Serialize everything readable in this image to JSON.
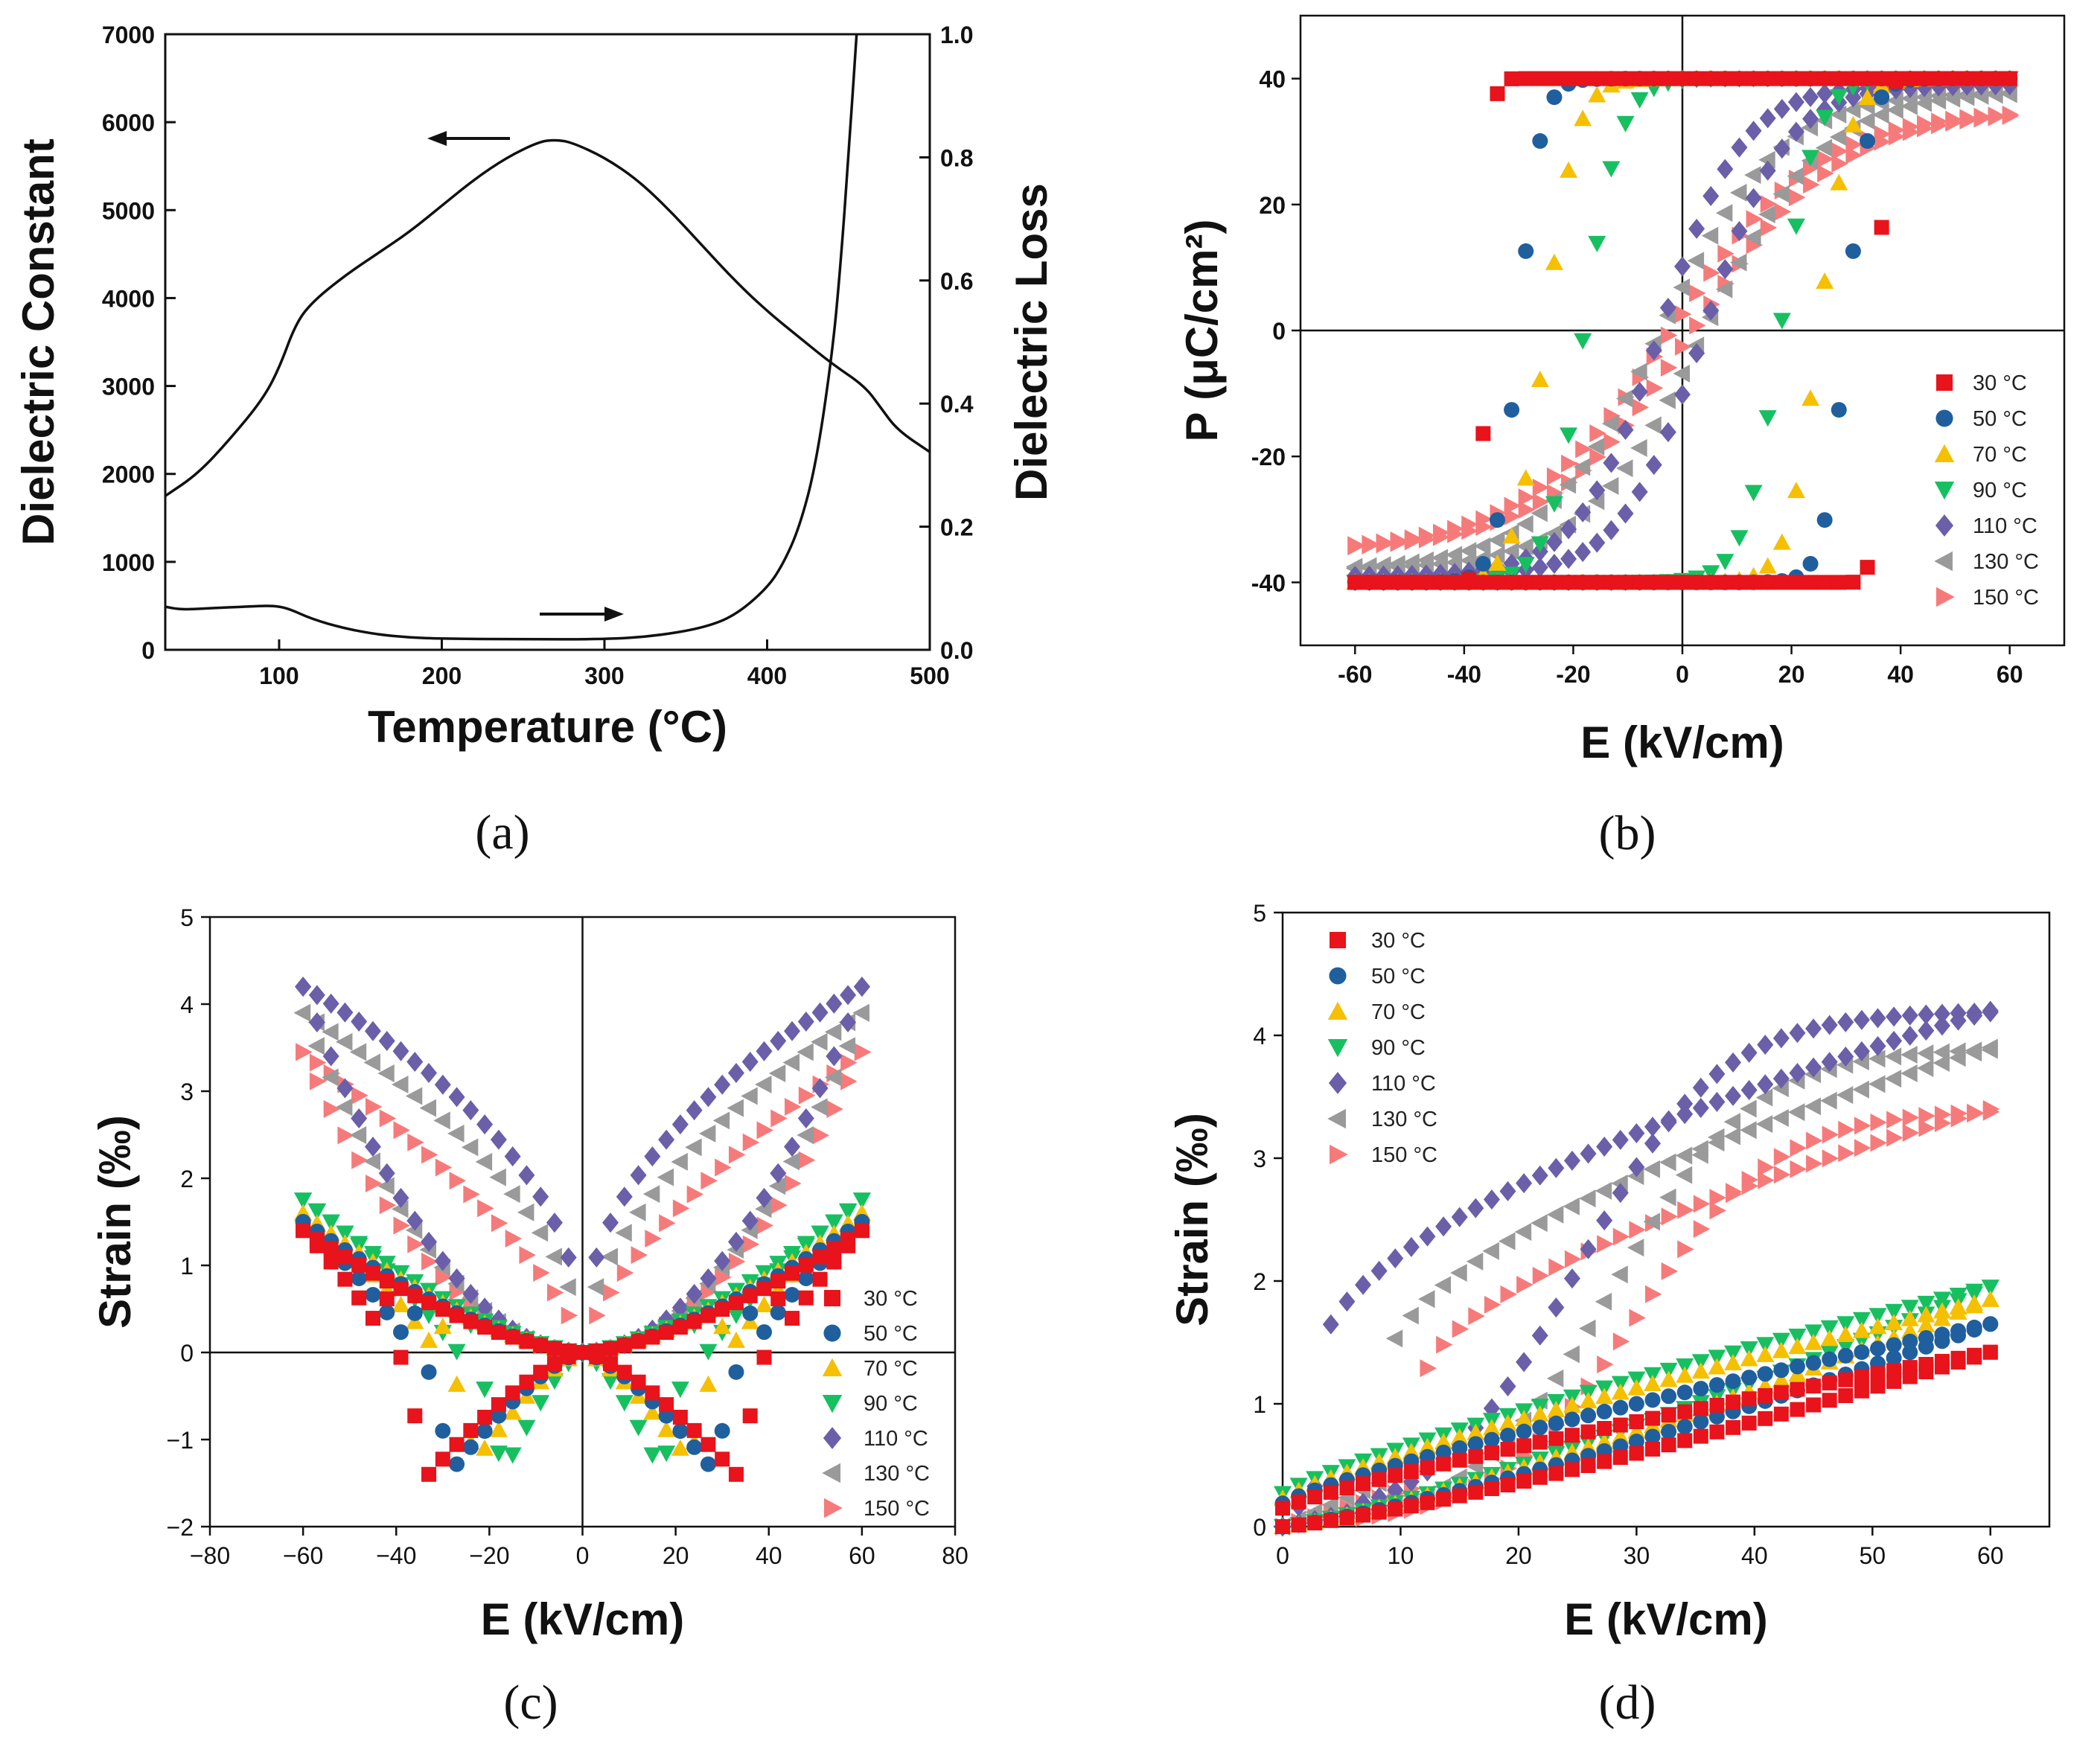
{
  "figure": {
    "panels": [
      "(a)",
      "(b)",
      "(c)",
      "(d)"
    ]
  },
  "series_names": [
    "30 °C",
    "50 °C",
    "70 °C",
    "90 °C",
    "110 °C",
    "130 °C",
    "150 °C"
  ],
  "series_colors": [
    "#e8131b",
    "#1f5f9e",
    "#f5c000",
    "#16c060",
    "#6a5fa8",
    "#9a9a9a",
    "#f77a7a"
  ],
  "series_markers": [
    "square",
    "circle",
    "triangle-up",
    "triangle-down",
    "diamond",
    "triangle-left",
    "triangle-right"
  ],
  "chart_data": [
    {
      "id": "a",
      "type": "line",
      "panel_label": "(a)",
      "xlabel": "Temperature (°C)",
      "ylabel": "Dielectric  Constant",
      "y2label": "Dielectric  Loss",
      "xlim": [
        30,
        500
      ],
      "ylim": [
        0,
        7000
      ],
      "y2lim": [
        0,
        1.0
      ],
      "xticks": [
        100,
        200,
        300,
        400,
        500
      ],
      "yticks": [
        0,
        1000,
        2000,
        3000,
        4000,
        5000,
        6000,
        7000
      ],
      "y2ticks": [
        "0.0",
        "0.2",
        "0.4",
        "0.6",
        "0.8",
        "1.0"
      ],
      "series": [
        {
          "name": "Dielectric Constant",
          "axis": "left",
          "x": [
            30,
            50,
            70,
            90,
            100,
            110,
            120,
            140,
            160,
            180,
            200,
            220,
            240,
            260,
            270,
            280,
            300,
            320,
            340,
            360,
            380,
            400,
            420,
            440,
            460,
            470,
            480,
            500
          ],
          "y": [
            1750,
            2000,
            2400,
            2850,
            3200,
            3700,
            3950,
            4250,
            4500,
            4750,
            5050,
            5350,
            5600,
            5780,
            5800,
            5770,
            5600,
            5350,
            5000,
            4600,
            4200,
            3850,
            3550,
            3250,
            3000,
            2750,
            2500,
            2250
          ]
        },
        {
          "name": "Dielectric Loss",
          "axis": "right",
          "x": [
            30,
            40,
            60,
            80,
            95,
            105,
            120,
            140,
            160,
            180,
            200,
            250,
            300,
            330,
            360,
            380,
            400,
            410,
            420,
            430,
            440,
            445,
            450,
            455
          ],
          "y": [
            0.07,
            0.065,
            0.068,
            0.07,
            0.072,
            0.068,
            0.05,
            0.035,
            0.025,
            0.02,
            0.018,
            0.017,
            0.017,
            0.022,
            0.035,
            0.055,
            0.1,
            0.14,
            0.2,
            0.3,
            0.48,
            0.62,
            0.8,
            1.0
          ]
        }
      ],
      "annotations": [
        "arrow-left-to-constant",
        "arrow-right-to-loss"
      ]
    },
    {
      "id": "b",
      "type": "scatter",
      "panel_label": "(b)",
      "xlabel": "E (kV/cm)",
      "ylabel": "P (μC/cm²)",
      "xlim": [
        -70,
        70
      ],
      "ylim": [
        -50,
        50
      ],
      "xticks": [
        -60,
        -40,
        -20,
        0,
        20,
        40,
        60
      ],
      "yticks": [
        -40,
        -20,
        0,
        20,
        40
      ],
      "legend": "bottom-right",
      "loop": "P-E hysteresis",
      "series": [
        {
          "name": "30 °C",
          "Ps": 40,
          "Ec": 36,
          "width": 1.2
        },
        {
          "name": "50 °C",
          "Ps": 40,
          "Ec": 30,
          "width": 4.0
        },
        {
          "name": "70 °C",
          "Ps": 40,
          "Ec": 25,
          "width": 5.5
        },
        {
          "name": "90 °C",
          "Ps": 40,
          "Ec": 18,
          "width": 6.5
        },
        {
          "name": "110 °C",
          "Ps": 39,
          "Ec": 4,
          "width": 15
        },
        {
          "name": "130 °C",
          "Ps": 38,
          "Ec": 4,
          "width": 22
        },
        {
          "name": "150 °C",
          "Ps": 35,
          "Ec": 2,
          "width": 27
        }
      ]
    },
    {
      "id": "c",
      "type": "scatter",
      "panel_label": "(c)",
      "xlabel": "E (kV/cm)",
      "ylabel": "Strain (‰)",
      "xlim": [
        -80,
        80
      ],
      "ylim": [
        -2,
        5
      ],
      "xticks": [
        -80,
        -60,
        -40,
        -20,
        0,
        20,
        40,
        60,
        80
      ],
      "yticks": [
        -2,
        -1,
        0,
        1,
        2,
        3,
        4,
        5
      ],
      "legend": "bottom-right",
      "loop": "bipolar S-E butterfly",
      "series": [
        {
          "name": "30 °C",
          "Smax": 1.4,
          "Smin": -1.4,
          "Ec": 33
        },
        {
          "name": "50 °C",
          "Smax": 1.5,
          "Smin": -1.35,
          "Ec": 28
        },
        {
          "name": "70 °C",
          "Smax": 1.6,
          "Smin": -1.25,
          "Ec": 23
        },
        {
          "name": "90 °C",
          "Smax": 1.75,
          "Smin": -1.4,
          "Ec": 17
        },
        {
          "name": "110 °C",
          "Smax": 4.2,
          "Smin": 0,
          "Ec": 0
        },
        {
          "name": "130 °C",
          "Smax": 3.9,
          "Smin": 0,
          "Ec": 0
        },
        {
          "name": "150 °C",
          "Smax": 3.45,
          "Smin": 0,
          "Ec": 0
        }
      ]
    },
    {
      "id": "d",
      "type": "scatter",
      "panel_label": "(d)",
      "xlabel": "E (kV/cm)",
      "ylabel": "Strain (‰)",
      "xlim": [
        0,
        65
      ],
      "ylim": [
        0,
        5
      ],
      "xticks": [
        0,
        10,
        20,
        30,
        40,
        50,
        60
      ],
      "yticks": [
        0,
        1,
        2,
        3,
        4,
        5
      ],
      "legend": "top-left",
      "loop": "unipolar S-E",
      "series": [
        {
          "name": "30 °C",
          "Smax": 1.42
        },
        {
          "name": "50 °C",
          "Smax": 1.65
        },
        {
          "name": "70 °C",
          "Smax": 1.85
        },
        {
          "name": "90 °C",
          "Smax": 1.95
        },
        {
          "name": "110 °C",
          "Smax": 4.2
        },
        {
          "name": "130 °C",
          "Smax": 3.9
        },
        {
          "name": "150 °C",
          "Smax": 3.4
        }
      ]
    }
  ]
}
